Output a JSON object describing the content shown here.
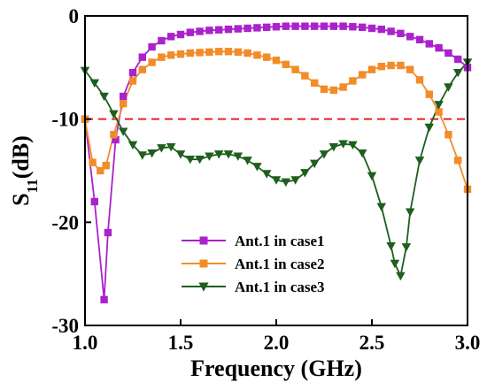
{
  "chart_data": {
    "type": "line",
    "xlabel": "Frequency (GHz)",
    "ylabel": {
      "main": "S",
      "sub": "11",
      "unit": "(dB)"
    },
    "xlim": [
      1.0,
      3.0
    ],
    "ylim": [
      -30,
      0
    ],
    "xticks": [
      "1.0",
      "1.5",
      "2.0",
      "2.5",
      "3.0"
    ],
    "yticks": [
      "0",
      "-10",
      "-20",
      "-30"
    ],
    "xtick_values": [
      1.0,
      1.5,
      2.0,
      2.5,
      3.0
    ],
    "ytick_values": [
      0,
      -10,
      -20,
      -30
    ],
    "legend_placement": "bottom-center",
    "reference_line": {
      "y": -10,
      "color": "#e8201c",
      "style": "dashed"
    },
    "series": [
      {
        "name": "Ant.1 in case1",
        "color": "#aa22cc",
        "marker": "square",
        "x": [
          1.0,
          1.05,
          1.1,
          1.12,
          1.16,
          1.2,
          1.25,
          1.3,
          1.35,
          1.4,
          1.45,
          1.5,
          1.55,
          1.6,
          1.65,
          1.7,
          1.75,
          1.8,
          1.85,
          1.9,
          1.95,
          2.0,
          2.05,
          2.1,
          2.15,
          2.2,
          2.25,
          2.3,
          2.35,
          2.4,
          2.45,
          2.5,
          2.55,
          2.6,
          2.65,
          2.7,
          2.75,
          2.8,
          2.85,
          2.9,
          2.95,
          3.0
        ],
        "y": [
          -10.0,
          -18.0,
          -27.5,
          -21.0,
          -12.0,
          -7.8,
          -5.5,
          -4.0,
          -3.0,
          -2.4,
          -2.0,
          -1.8,
          -1.6,
          -1.5,
          -1.4,
          -1.35,
          -1.3,
          -1.25,
          -1.2,
          -1.15,
          -1.1,
          -1.05,
          -1.0,
          -1.0,
          -1.0,
          -1.0,
          -1.0,
          -1.0,
          -1.0,
          -1.05,
          -1.1,
          -1.2,
          -1.3,
          -1.5,
          -1.7,
          -2.0,
          -2.3,
          -2.7,
          -3.1,
          -3.6,
          -4.2,
          -5.0
        ]
      },
      {
        "name": "Ant.1 in case2",
        "color": "#f28c28",
        "marker": "square",
        "x": [
          1.0,
          1.04,
          1.08,
          1.11,
          1.15,
          1.2,
          1.25,
          1.3,
          1.35,
          1.4,
          1.45,
          1.5,
          1.55,
          1.6,
          1.65,
          1.7,
          1.75,
          1.8,
          1.85,
          1.9,
          1.95,
          2.0,
          2.05,
          2.1,
          2.15,
          2.2,
          2.25,
          2.3,
          2.35,
          2.4,
          2.45,
          2.5,
          2.55,
          2.6,
          2.65,
          2.7,
          2.75,
          2.8,
          2.85,
          2.9,
          2.95,
          3.0
        ],
        "y": [
          -10.0,
          -14.2,
          -15.0,
          -14.5,
          -11.5,
          -8.5,
          -6.3,
          -5.2,
          -4.5,
          -4.0,
          -3.8,
          -3.7,
          -3.6,
          -3.55,
          -3.5,
          -3.45,
          -3.45,
          -3.5,
          -3.6,
          -3.8,
          -4.0,
          -4.3,
          -4.7,
          -5.2,
          -5.8,
          -6.5,
          -7.1,
          -7.2,
          -6.9,
          -6.3,
          -5.7,
          -5.2,
          -4.9,
          -4.8,
          -4.8,
          -5.2,
          -6.2,
          -7.6,
          -9.3,
          -11.5,
          -14.0,
          -16.8
        ]
      },
      {
        "name": "Ant.1 in case3",
        "color": "#1e5e1e",
        "marker": "triangle-down",
        "x": [
          1.0,
          1.05,
          1.1,
          1.15,
          1.2,
          1.25,
          1.3,
          1.35,
          1.4,
          1.45,
          1.5,
          1.55,
          1.6,
          1.65,
          1.7,
          1.75,
          1.8,
          1.85,
          1.9,
          1.95,
          2.0,
          2.05,
          2.1,
          2.15,
          2.2,
          2.25,
          2.3,
          2.35,
          2.4,
          2.45,
          2.5,
          2.55,
          2.6,
          2.62,
          2.65,
          2.68,
          2.7,
          2.75,
          2.8,
          2.85,
          2.9,
          2.95,
          3.0
        ],
        "y": [
          -5.3,
          -6.5,
          -7.8,
          -9.5,
          -11.2,
          -12.5,
          -13.5,
          -13.3,
          -12.8,
          -12.7,
          -13.4,
          -13.9,
          -13.9,
          -13.6,
          -13.4,
          -13.4,
          -13.6,
          -14.0,
          -14.6,
          -15.3,
          -15.9,
          -16.1,
          -15.9,
          -15.2,
          -14.3,
          -13.4,
          -12.7,
          -12.4,
          -12.5,
          -13.3,
          -15.5,
          -18.5,
          -22.3,
          -24.0,
          -25.2,
          -22.4,
          -19.0,
          -14.0,
          -10.8,
          -8.6,
          -6.9,
          -5.5,
          -4.5
        ]
      }
    ]
  }
}
